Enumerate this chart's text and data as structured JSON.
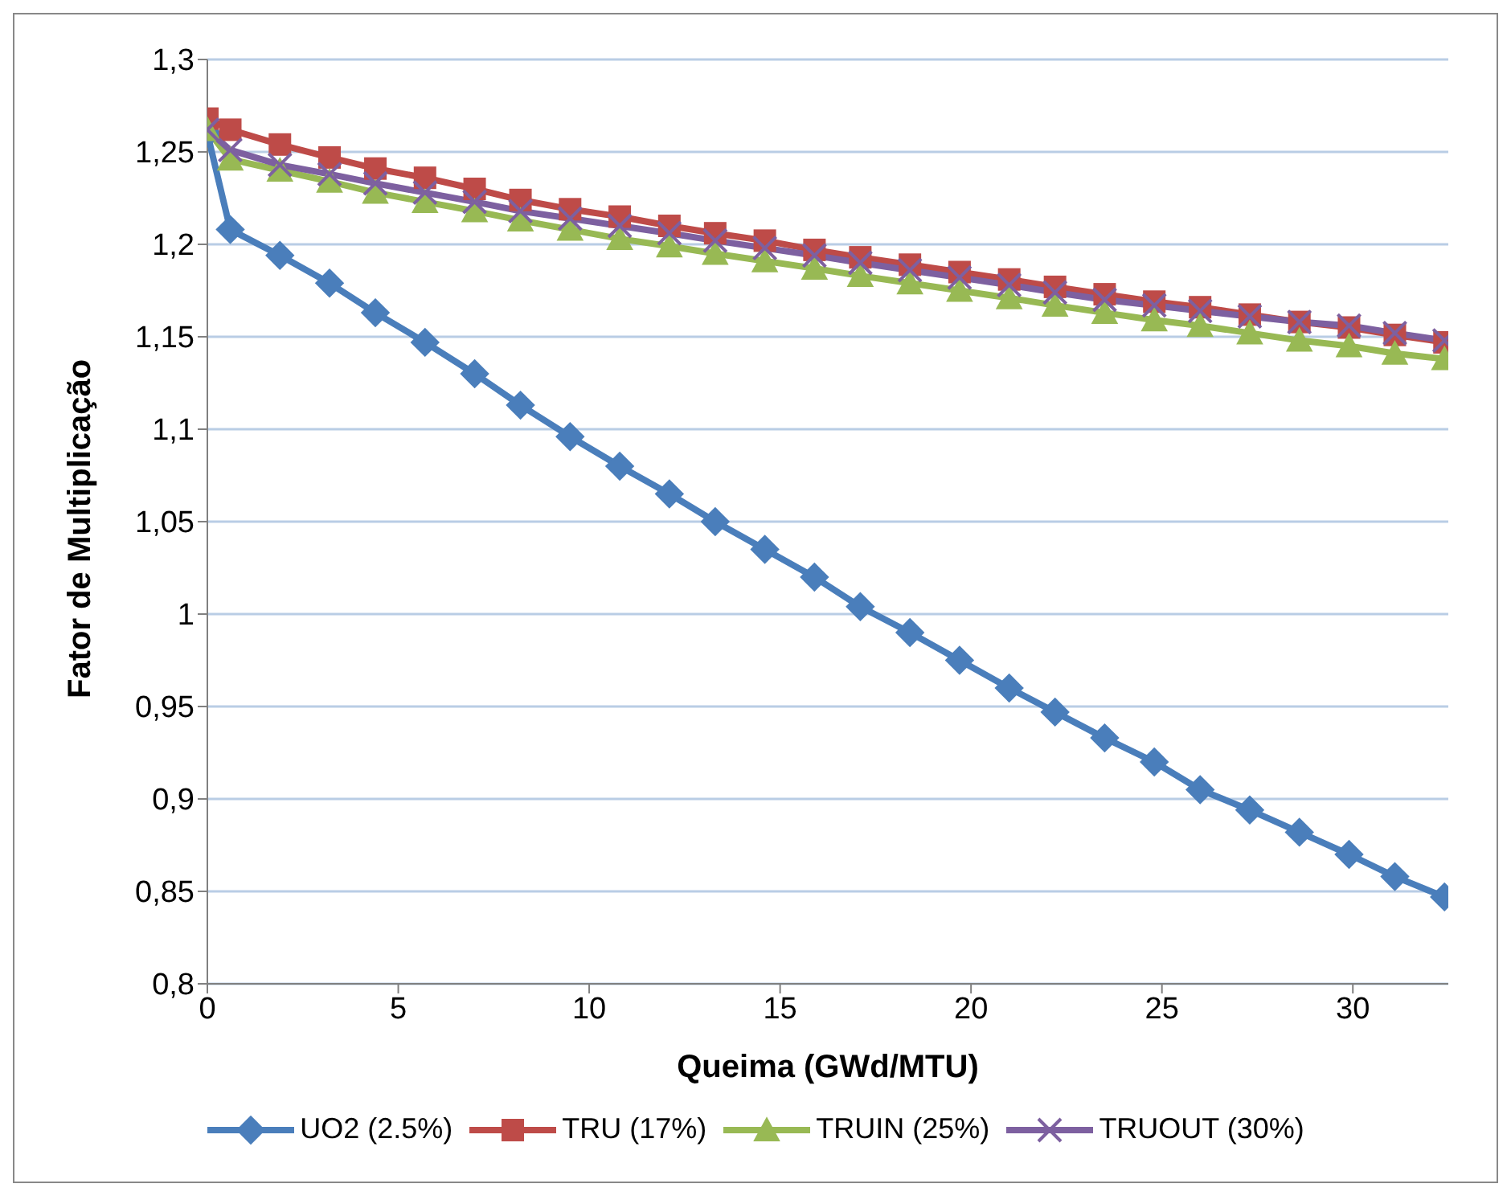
{
  "chart_data": {
    "type": "line",
    "xlabel": "Queima (GWd/MTU)",
    "ylabel": "Fator de Multiplicação",
    "x": [
      0,
      0.6,
      1.9,
      3.2,
      4.4,
      5.7,
      7.0,
      8.2,
      9.5,
      10.8,
      12.1,
      13.3,
      14.6,
      15.9,
      17.1,
      18.4,
      19.7,
      21.0,
      22.2,
      23.5,
      24.8,
      26.0,
      27.3,
      28.6,
      29.9,
      31.1,
      32.4
    ],
    "series": [
      {
        "name": "UO2 (2.5%)",
        "color": "#4a7ebb",
        "marker": "diamond",
        "values": [
          1.26,
          1.208,
          1.194,
          1.179,
          1.163,
          1.147,
          1.13,
          1.113,
          1.096,
          1.08,
          1.065,
          1.05,
          1.035,
          1.02,
          1.004,
          0.99,
          0.975,
          0.96,
          0.947,
          0.933,
          0.92,
          0.905,
          0.894,
          0.882,
          0.87,
          0.858,
          0.847
        ]
      },
      {
        "name": "TRU (17%)",
        "color": "#be4b48",
        "marker": "square",
        "values": [
          1.268,
          1.262,
          1.254,
          1.247,
          1.241,
          1.236,
          1.23,
          1.224,
          1.219,
          1.215,
          1.21,
          1.206,
          1.202,
          1.197,
          1.193,
          1.189,
          1.185,
          1.181,
          1.177,
          1.173,
          1.169,
          1.166,
          1.162,
          1.158,
          1.155,
          1.151,
          1.147
        ]
      },
      {
        "name": "TRUIN (25%)",
        "color": "#98b954",
        "marker": "triangle",
        "values": [
          1.262,
          1.246,
          1.24,
          1.234,
          1.228,
          1.223,
          1.218,
          1.213,
          1.208,
          1.203,
          1.199,
          1.195,
          1.191,
          1.187,
          1.183,
          1.179,
          1.175,
          1.171,
          1.167,
          1.163,
          1.159,
          1.156,
          1.152,
          1.148,
          1.145,
          1.141,
          1.138
        ]
      },
      {
        "name": "TRUOUT (30%)",
        "color": "#7d60a0",
        "marker": "cross",
        "values": [
          1.262,
          1.251,
          1.243,
          1.238,
          1.233,
          1.228,
          1.223,
          1.218,
          1.214,
          1.21,
          1.206,
          1.202,
          1.198,
          1.194,
          1.19,
          1.186,
          1.182,
          1.178,
          1.174,
          1.17,
          1.167,
          1.164,
          1.161,
          1.158,
          1.156,
          1.152,
          1.148
        ]
      }
    ],
    "xlim": [
      0,
      32.5
    ],
    "xticks": [
      0,
      5,
      10,
      15,
      20,
      25,
      30
    ],
    "ylim": [
      0.8,
      1.3
    ],
    "yticks": [
      {
        "value": 0.8,
        "label": "0,8"
      },
      {
        "value": 0.85,
        "label": "0,85"
      },
      {
        "value": 0.9,
        "label": "0,9"
      },
      {
        "value": 0.95,
        "label": "0,95"
      },
      {
        "value": 1,
        "label": "1"
      },
      {
        "value": 1.05,
        "label": "1,05"
      },
      {
        "value": 1.1,
        "label": "1,1"
      },
      {
        "value": 1.15,
        "label": "1,15"
      },
      {
        "value": 1.2,
        "label": "1,2"
      },
      {
        "value": 1.25,
        "label": "1,25"
      },
      {
        "value": 1.3,
        "label": "1,3"
      }
    ],
    "grid": "y",
    "legend": "bottom"
  }
}
